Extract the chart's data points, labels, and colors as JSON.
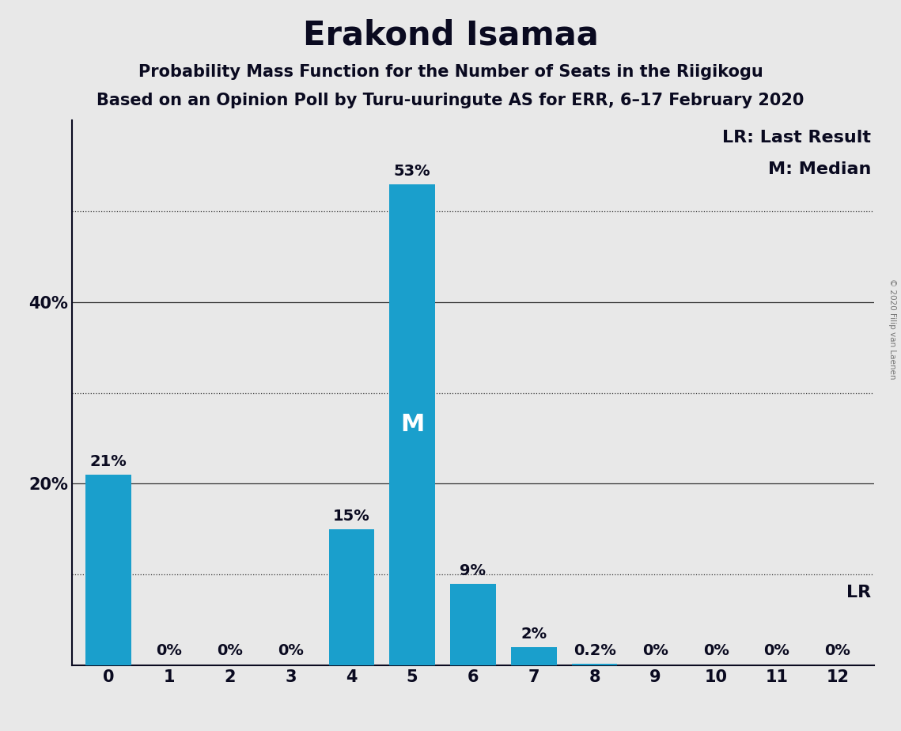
{
  "title": "Erakond Isamaa",
  "subtitle1": "Probability Mass Function for the Number of Seats in the Riigikogu",
  "subtitle2": "Based on an Opinion Poll by Turu-uuringute AS for ERR, 6–17 February 2020",
  "watermark": "© 2020 Filip van Laenen",
  "categories": [
    0,
    1,
    2,
    3,
    4,
    5,
    6,
    7,
    8,
    9,
    10,
    11,
    12
  ],
  "values": [
    21,
    0,
    0,
    0,
    15,
    53,
    9,
    2,
    0.2,
    0,
    0,
    0,
    0
  ],
  "labels": [
    "21%",
    "0%",
    "0%",
    "0%",
    "15%",
    "53%",
    "9%",
    "2%",
    "0.2%",
    "0%",
    "0%",
    "0%",
    "0%"
  ],
  "bar_color": "#1a9fcc",
  "background_color": "#e8e8e8",
  "median_bar": 5,
  "legend_line1": "LR: Last Result",
  "legend_line2": "M: Median",
  "lr_label": "LR",
  "yticks": [
    0,
    20,
    40
  ],
  "ytick_labels": [
    "",
    "20%",
    "40%"
  ],
  "ylim": [
    0,
    60
  ],
  "dotted_lines": [
    10,
    30,
    50
  ],
  "solid_lines": [
    20,
    40
  ],
  "title_fontsize": 30,
  "subtitle_fontsize": 15,
  "label_fontsize": 14,
  "axis_fontsize": 15,
  "median_label_fontsize": 22,
  "legend_fontsize": 16
}
